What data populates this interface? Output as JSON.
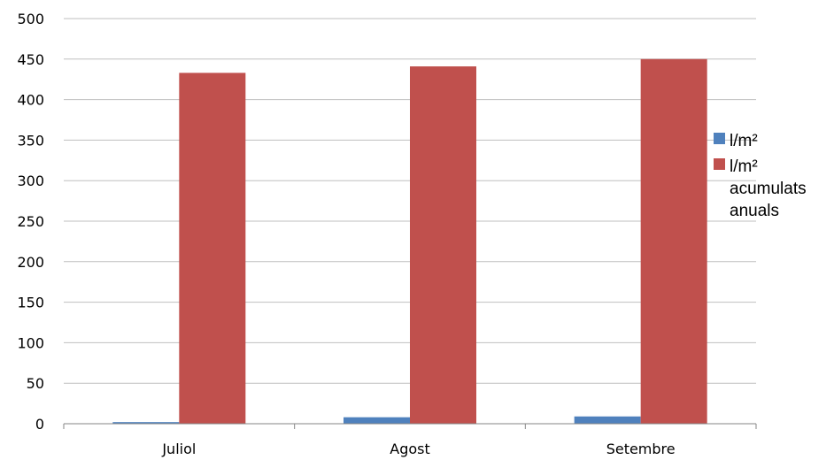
{
  "chart_data": {
    "type": "bar",
    "categories": [
      "Juliol",
      "Agost",
      "Setembre"
    ],
    "series": [
      {
        "name": "l/m²",
        "color": "#4F81BD",
        "values": [
          2,
          8,
          9
        ]
      },
      {
        "name": "l/m² acumulats anuals",
        "color": "#C0504D",
        "values": [
          433,
          441,
          450
        ]
      }
    ],
    "legend_lines": [
      [
        "l/m²"
      ],
      [
        "l/m²",
        "acumulats",
        "anuals"
      ]
    ],
    "ylim": [
      0,
      500
    ],
    "yticks": [
      0,
      50,
      100,
      150,
      200,
      250,
      300,
      350,
      400,
      450,
      500
    ],
    "grid": true,
    "legend_position": "right",
    "title": "",
    "xlabel": "",
    "ylabel": ""
  }
}
